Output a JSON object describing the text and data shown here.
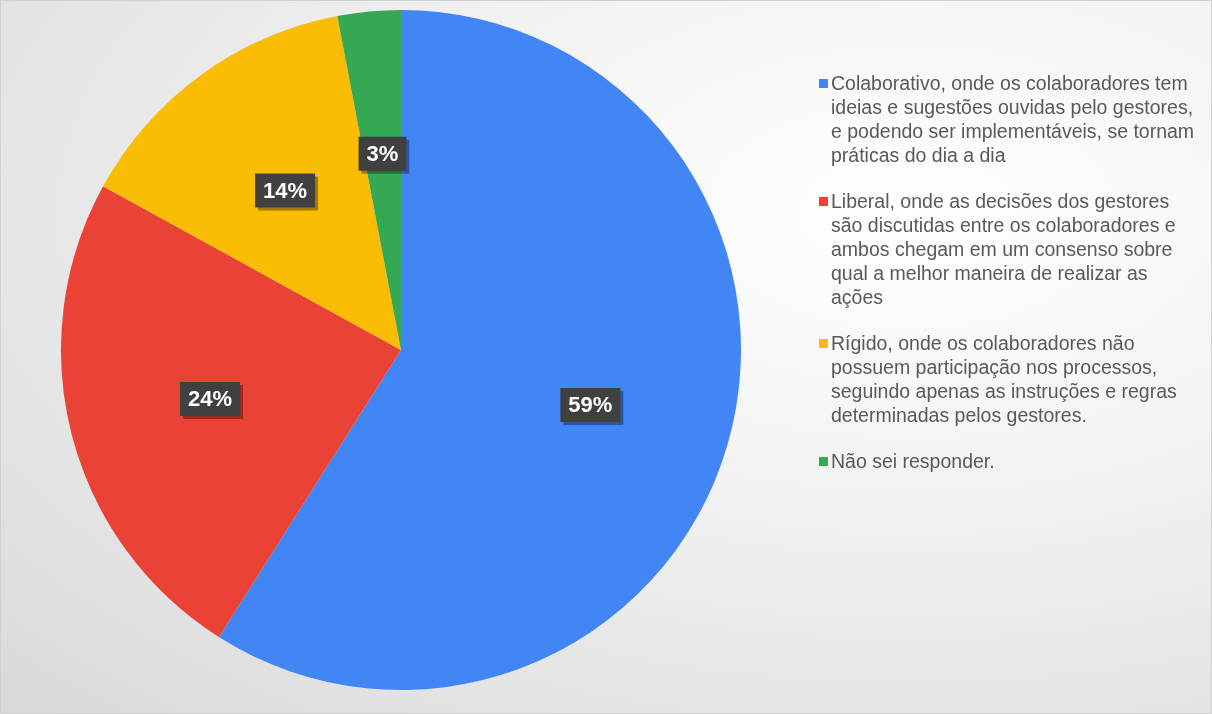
{
  "chart_data": {
    "type": "pie",
    "categories": [
      "Colaborativo, onde os colaboradores tem ideias e sugestões ouvidas pelo gestores, e podendo ser implementáveis, se tornam práticas do dia a dia",
      "Liberal, onde as decisões dos gestores são discutidas entre os colaboradores e ambos chegam em um consenso sobre qual a melhor maneira de realizar as ações",
      "Rígido, onde os colaboradores não possuem participação nos processos, seguindo apenas as instruções e regras determinadas pelos gestores.",
      "Não sei responder."
    ],
    "values": [
      59,
      24,
      14,
      3
    ],
    "colors": [
      "#4285f4",
      "#ea4335",
      "#fbbc04",
      "#34a853"
    ],
    "value_labels": [
      "59%",
      "24%",
      "14%",
      "3%"
    ],
    "legend": "right"
  }
}
